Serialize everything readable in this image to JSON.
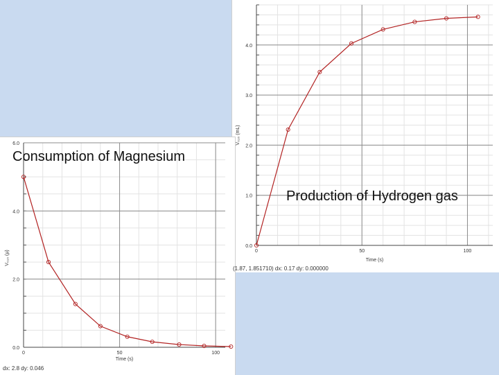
{
  "slide": {
    "caption_left": "Consumption of Magnesium",
    "caption_right": "Production of Hydrogen gas"
  },
  "colors": {
    "background": "#c9daf0",
    "series": "#b22222",
    "major_grid": "#8c8c8c",
    "minor_grid": "#e3e3e3"
  },
  "chart_data": [
    {
      "type": "line",
      "title": "",
      "xlabel": "Time (s)",
      "ylabel": "V₀₁₀ (µ)",
      "xlim": [
        0,
        105
      ],
      "ylim": [
        0,
        6.0
      ],
      "x_ticks": [
        0,
        50,
        100
      ],
      "x_tick_labels": [
        "0",
        "50",
        "100"
      ],
      "y_ticks": [
        0,
        2.0,
        4.0,
        6.0
      ],
      "y_tick_labels": [
        "0.0",
        "2.0",
        "4.0",
        "6.0"
      ],
      "grid": true,
      "status_text": "dx: 2.8 dy: 0.046",
      "series": [
        {
          "x": [
            0,
            13,
            27,
            40,
            54,
            67,
            81,
            94,
            108
          ],
          "y": [
            5.0,
            2.5,
            1.27,
            0.62,
            0.31,
            0.16,
            0.08,
            0.04,
            0.02
          ]
        }
      ]
    },
    {
      "type": "line",
      "title": "",
      "xlabel": "Time (s)",
      "ylabel": "V₀₁₀ (mL)",
      "xlim": [
        0,
        112
      ],
      "ylim": [
        0,
        4.8
      ],
      "x_ticks": [
        0,
        50,
        100
      ],
      "x_tick_labels": [
        "0",
        "50",
        "100"
      ],
      "y_ticks": [
        0,
        1.0,
        2.0,
        3.0,
        4.0
      ],
      "y_tick_labels": [
        "0.0",
        "1.0",
        "2.0",
        "3.0",
        "4.0"
      ],
      "grid": true,
      "status_text": "(1.87, 1.851710) dx: 0.17 dy: 0.000000",
      "series": [
        {
          "x": [
            0,
            15,
            30,
            45,
            60,
            75,
            90,
            105
          ],
          "y": [
            0.0,
            2.31,
            3.46,
            4.03,
            4.31,
            4.46,
            4.53,
            4.56
          ]
        }
      ]
    }
  ]
}
